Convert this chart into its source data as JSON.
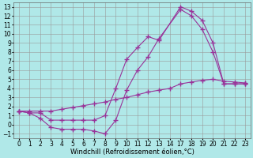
{
  "background_color": "#b0e8e8",
  "grid_color": "#999999",
  "line_color": "#993399",
  "line_width": 0.8,
  "marker": "+",
  "markersize": 4,
  "markeredgewidth": 1.0,
  "xlim": [
    -0.5,
    23.5
  ],
  "ylim": [
    -1.5,
    13.5
  ],
  "xticks": [
    0,
    1,
    2,
    3,
    4,
    5,
    6,
    7,
    8,
    9,
    10,
    11,
    12,
    13,
    14,
    17,
    18,
    19,
    20,
    21,
    22,
    23
  ],
  "yticks": [
    -1,
    0,
    1,
    2,
    3,
    4,
    5,
    6,
    7,
    8,
    9,
    10,
    11,
    12,
    13
  ],
  "xlabel": "Windchill (Refroidissement éolien,°C)",
  "xlabel_fontsize": 6,
  "tick_fontsize": 5.5,
  "line1_x": [
    0,
    1,
    2,
    3,
    4,
    5,
    6,
    7,
    8,
    9,
    10,
    11,
    12,
    13,
    17,
    18,
    19,
    20,
    21,
    22,
    23
  ],
  "line1_y": [
    1.5,
    1.3,
    1.3,
    0.5,
    0.5,
    0.5,
    0.5,
    0.5,
    1.0,
    4.0,
    7.2,
    8.5,
    9.7,
    9.3,
    13.0,
    12.5,
    11.5,
    9.0,
    4.5,
    4.5,
    4.5
  ],
  "line2_x": [
    0,
    1,
    2,
    3,
    4,
    5,
    6,
    7,
    8,
    9,
    10,
    11,
    12,
    13,
    17,
    18,
    19,
    20,
    21,
    22,
    23
  ],
  "line2_y": [
    1.5,
    1.3,
    0.7,
    -0.3,
    -0.5,
    -0.5,
    -0.5,
    -0.7,
    -1.0,
    0.5,
    3.8,
    6.0,
    7.5,
    9.5,
    12.7,
    12.0,
    10.5,
    8.0,
    4.5,
    4.5,
    4.5
  ],
  "line3_x": [
    0,
    1,
    2,
    3,
    4,
    5,
    6,
    7,
    8,
    9,
    10,
    11,
    12,
    13,
    14,
    17,
    18,
    19,
    20,
    21,
    22,
    23
  ],
  "line3_y": [
    1.5,
    1.5,
    1.5,
    1.5,
    1.7,
    1.9,
    2.1,
    2.3,
    2.5,
    2.8,
    3.0,
    3.3,
    3.6,
    3.8,
    4.0,
    4.5,
    4.7,
    4.9,
    5.0,
    4.8,
    4.7,
    4.6
  ]
}
